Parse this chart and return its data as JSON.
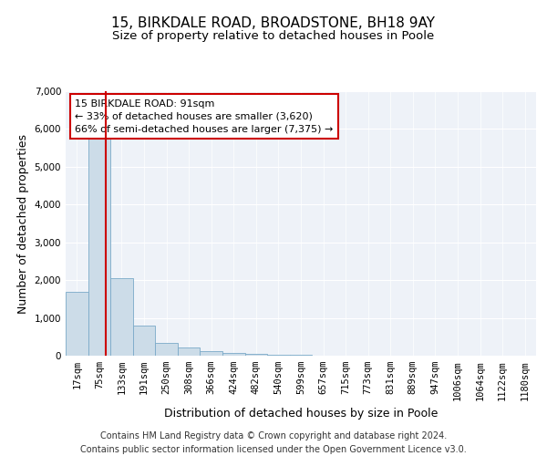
{
  "title_line1": "15, BIRKDALE ROAD, BROADSTONE, BH18 9AY",
  "title_line2": "Size of property relative to detached houses in Poole",
  "xlabel": "Distribution of detached houses by size in Poole",
  "ylabel": "Number of detached properties",
  "bar_color": "#ccdce8",
  "bar_edge_color": "#7aaac8",
  "property_line_color": "#cc0000",
  "annotation_text": "15 BIRKDALE ROAD: 91sqm\n← 33% of detached houses are smaller (3,620)\n66% of semi-detached houses are larger (7,375) →",
  "annotation_box_color": "#ffffff",
  "annotation_box_edge": "#cc0000",
  "categories": [
    "17sqm",
    "75sqm",
    "133sqm",
    "191sqm",
    "250sqm",
    "308sqm",
    "366sqm",
    "424sqm",
    "482sqm",
    "540sqm",
    "599sqm",
    "657sqm",
    "715sqm",
    "773sqm",
    "831sqm",
    "889sqm",
    "947sqm",
    "1006sqm",
    "1064sqm",
    "1122sqm",
    "1180sqm"
  ],
  "values": [
    1700,
    5800,
    2050,
    800,
    350,
    220,
    120,
    80,
    55,
    30,
    15,
    8,
    4,
    2,
    1,
    1,
    0,
    0,
    0,
    0,
    0
  ],
  "ylim": [
    0,
    7000
  ],
  "yticks": [
    0,
    1000,
    2000,
    3000,
    4000,
    5000,
    6000,
    7000
  ],
  "plot_background": "#eef2f8",
  "footer_line1": "Contains HM Land Registry data © Crown copyright and database right 2024.",
  "footer_line2": "Contains public sector information licensed under the Open Government Licence v3.0.",
  "title_fontsize": 11,
  "subtitle_fontsize": 9.5,
  "axis_label_fontsize": 9,
  "tick_label_fontsize": 7.5,
  "footer_fontsize": 7
}
